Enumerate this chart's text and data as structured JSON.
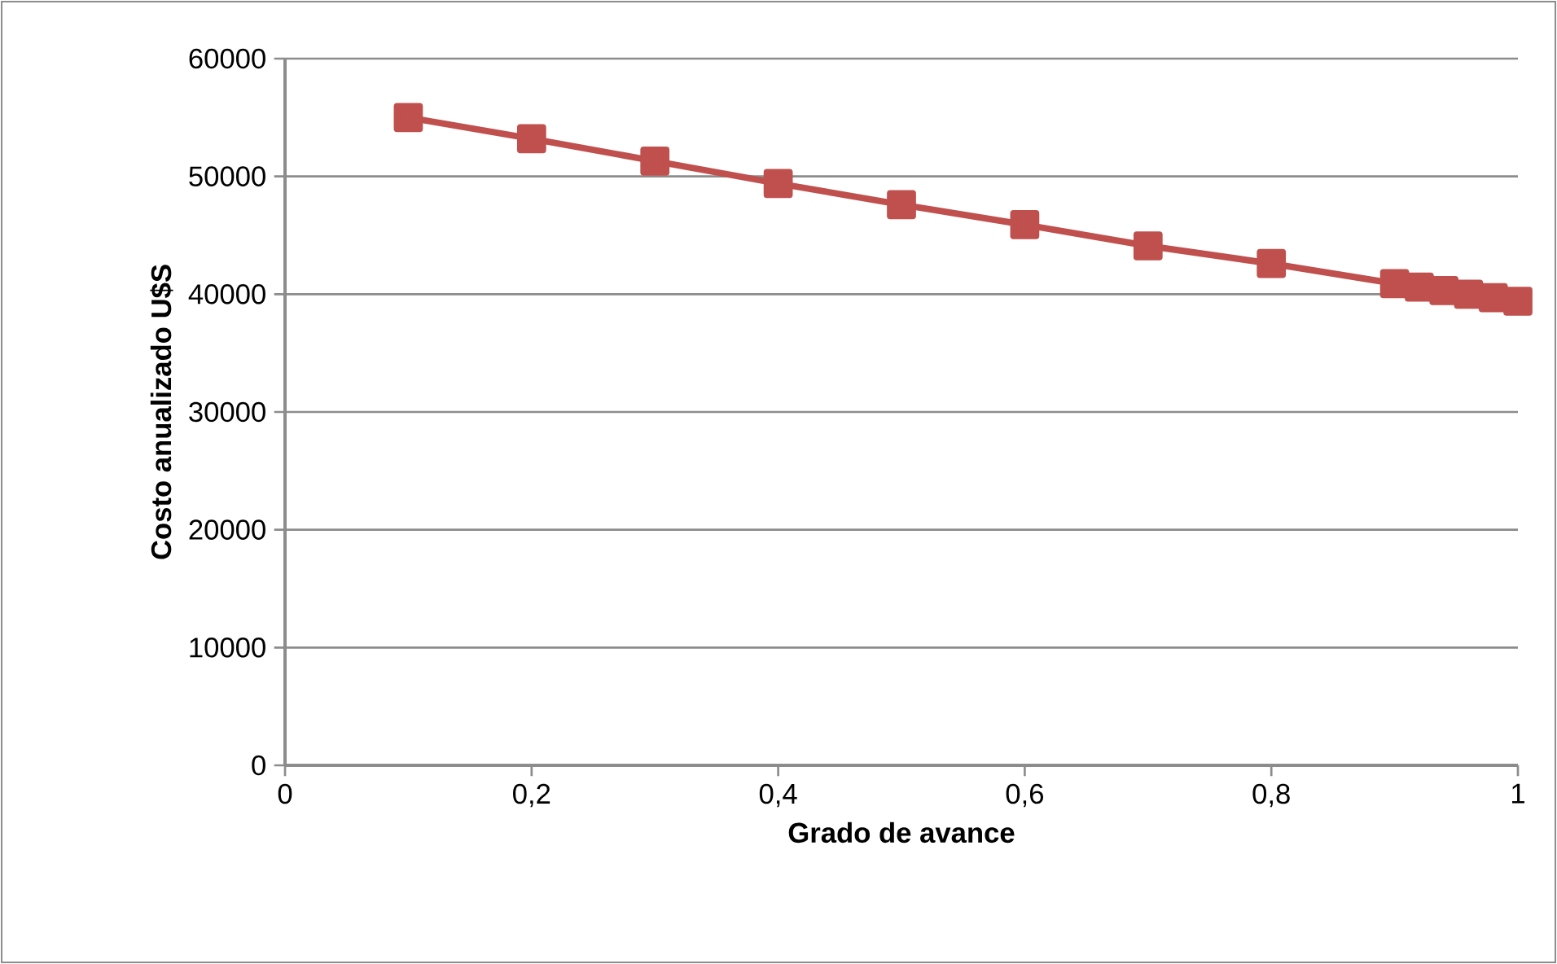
{
  "chart_data": {
    "type": "line",
    "xlabel": "Grado de avance",
    "ylabel": "Costo anualizado U$S",
    "x": [
      0.1,
      0.2,
      0.3,
      0.4,
      0.5,
      0.6,
      0.7,
      0.8,
      0.9,
      0.92,
      0.94,
      0.96,
      0.98,
      1.0
    ],
    "series": [
      {
        "color": "#c0504d",
        "values": [
          55000,
          53200,
          51300,
          49400,
          47600,
          45900,
          44100,
          42600,
          40900,
          40600,
          40300,
          40000,
          39700,
          39400
        ]
      }
    ],
    "xlim": [
      0,
      1
    ],
    "xticks": [
      0,
      {
        "value": 0.2,
        "label": "0,2"
      },
      {
        "value": 0.4,
        "label": "0,4"
      },
      {
        "value": 0.6,
        "label": "0,6"
      },
      {
        "value": 0.8,
        "label": "0,8"
      },
      1
    ],
    "ylim": [
      0,
      60000
    ],
    "yticks": [
      0,
      10000,
      20000,
      30000,
      40000,
      50000,
      60000
    ],
    "grid": "y",
    "marker": "square",
    "line_style": "solid"
  }
}
